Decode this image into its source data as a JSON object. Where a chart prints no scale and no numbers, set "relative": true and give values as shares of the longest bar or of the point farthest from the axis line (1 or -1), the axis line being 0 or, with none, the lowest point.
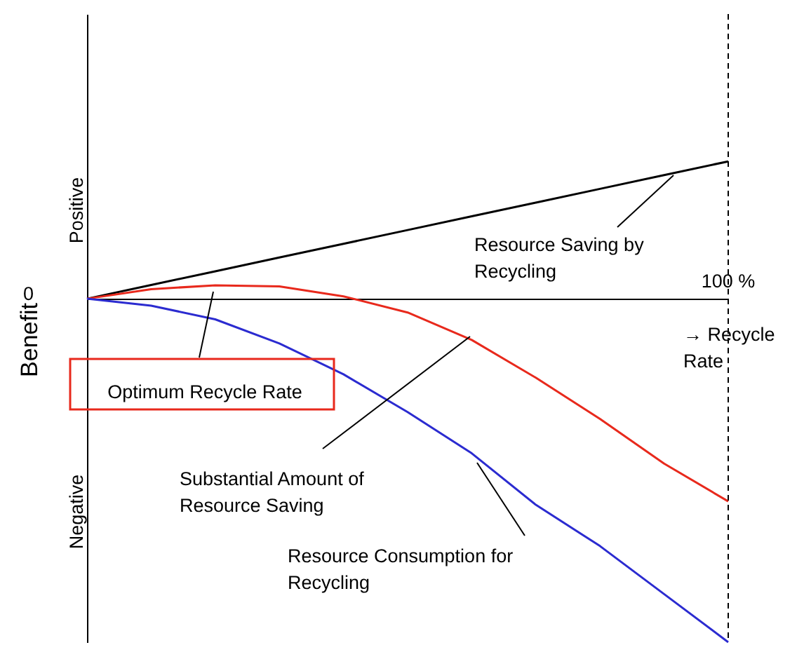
{
  "chart_data": {
    "type": "line",
    "relative": true,
    "ylabel": "Benefit",
    "categories": [
      null,
      null,
      null,
      null,
      null,
      null,
      null,
      null,
      null,
      null,
      null
    ],
    "series": [
      {
        "color": "#000000",
        "values": [
          0,
          0.04,
          0.08,
          0.12,
          0.16,
          0.2,
          0.24,
          0.28,
          0.32,
          0.36,
          0.4
        ]
      },
      {
        "color": "#e8291c",
        "values": [
          0,
          0.028,
          0.039,
          0.036,
          0.007,
          -0.04,
          -0.12,
          -0.23,
          -0.35,
          -0.48,
          -0.59
        ]
      },
      {
        "color": "#2b2bd0",
        "values": [
          0,
          -0.02,
          -0.06,
          -0.13,
          -0.22,
          -0.33,
          -0.45,
          -0.6,
          -0.72,
          -0.86,
          -1
        ]
      }
    ],
    "annotations": [
      "0",
      "Positive",
      "Negative",
      "→ Recycle Rate",
      "100 %",
      "Resource Saving by Recycling",
      "Optimum Recycle Rate",
      "Substantial Amount of Resource Saving",
      "Resource Consumption for Recycling"
    ]
  }
}
